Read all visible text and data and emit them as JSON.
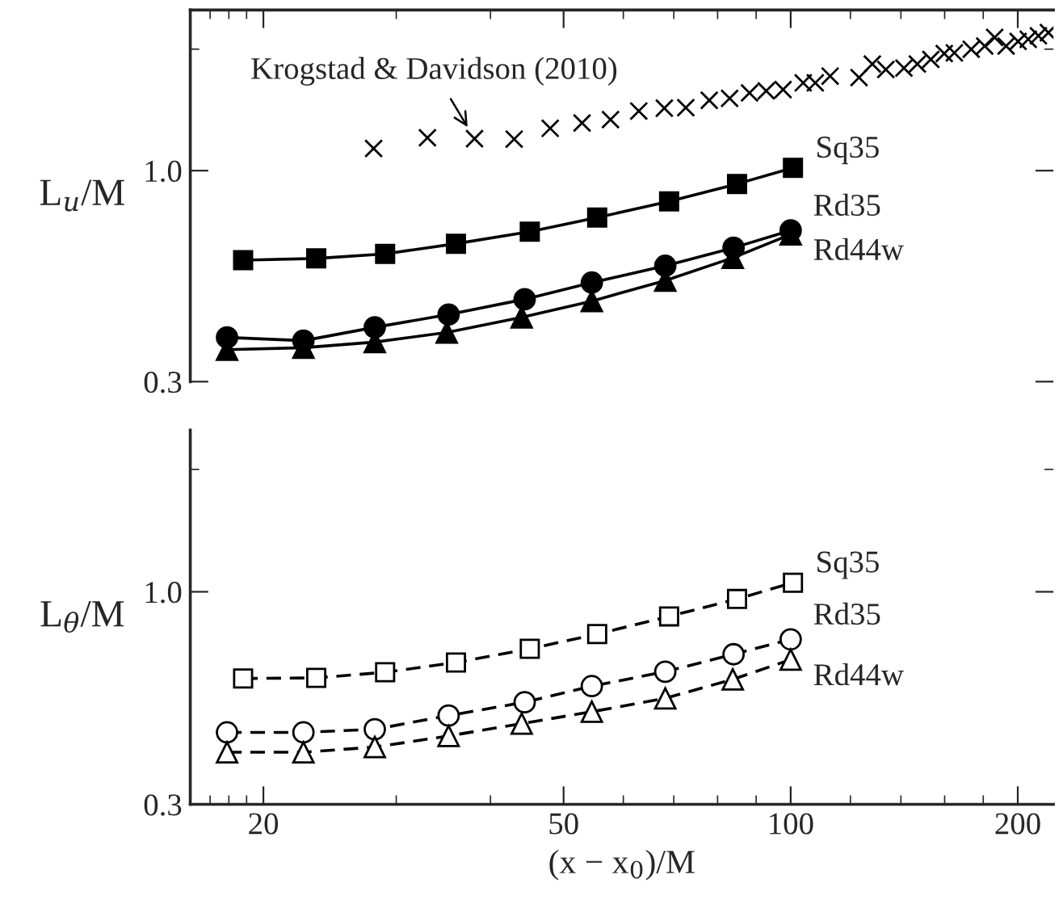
{
  "chart_data": [
    {
      "type": "line",
      "ylabel": "L$_{u}$/M",
      "log": "xy",
      "grid": false,
      "legend": false,
      "tick_labels": "y",
      "xlim": [
        16,
        223
      ],
      "ylim": [
        0.3,
        2.5
      ],
      "xticks": [
        20,
        50,
        100,
        200,
        {
          "value": 17,
          "label": null
        },
        {
          "value": 18,
          "label": null
        },
        {
          "value": 19,
          "label": null
        },
        {
          "value": 30,
          "label": null
        },
        {
          "value": 40,
          "label": null
        },
        {
          "value": 60,
          "label": null
        },
        {
          "value": 70,
          "label": null
        },
        {
          "value": 80,
          "label": null
        },
        {
          "value": 90,
          "label": null
        },
        {
          "value": 120,
          "label": null
        },
        {
          "value": 140,
          "label": null
        },
        {
          "value": 160,
          "label": null
        },
        {
          "value": 180,
          "label": null
        }
      ],
      "yticks": [
        {
          "value": 0.3,
          "label": "0.3"
        },
        {
          "value": 1.0,
          "label": "1.0"
        },
        {
          "value": 2.0,
          "label": null
        }
      ],
      "annotations": [
        {
          "text": "Krogstad & Davidson (2010)",
          "x": 38.1,
          "y": 1.2
        }
      ],
      "series": [
        {
          "name": "Sq35",
          "color": "#000000",
          "marker": "square",
          "line_style": "solid",
          "x": [
            18.8,
            23.5,
            29.0,
            36.0,
            45.1,
            55.4,
            69.0,
            84.9,
            100.7
          ],
          "values": [
            0.6,
            0.606,
            0.622,
            0.659,
            0.706,
            0.765,
            0.839,
            0.927,
            1.016
          ]
        },
        {
          "name": "Rd35",
          "color": "#000000",
          "marker": "circle",
          "line_style": "solid",
          "x": [
            17.9,
            22.6,
            28.1,
            35.2,
            44.4,
            54.5,
            68.2,
            84.0,
            100.0
          ],
          "values": [
            0.386,
            0.379,
            0.409,
            0.44,
            0.48,
            0.528,
            0.581,
            0.644,
            0.711
          ]
        },
        {
          "name": "Rd44w",
          "color": "#000000",
          "marker": "triangle",
          "line_style": "solid",
          "x": [
            17.9,
            22.6,
            28.1,
            35.0,
            44.0,
            54.5,
            68.2,
            83.8,
            100.0
          ],
          "values": [
            0.36,
            0.364,
            0.376,
            0.397,
            0.433,
            0.475,
            0.534,
            0.608,
            0.695
          ]
        },
        {
          "type": "scatter",
          "color": "#000000",
          "marker": "cross",
          "x": [
            28.0,
            33.0,
            38.1,
            43.0,
            48.0,
            52.9,
            57.7,
            62.9,
            68.0,
            72.6,
            78.0,
            83.0,
            88.2,
            92.8,
            97.7,
            103.9,
            107.8,
            112.8,
            123.2,
            128.3,
            133.7,
            141.3,
            147.2,
            153.4,
            159.8,
            164.8,
            173.5,
            180.8,
            186.4,
            193.0,
            200.2,
            206.5,
            213.0,
            219.6
          ],
          "values": [
            1.135,
            1.206,
            1.2,
            1.197,
            1.273,
            1.312,
            1.338,
            1.405,
            1.428,
            1.432,
            1.494,
            1.51,
            1.558,
            1.576,
            1.588,
            1.65,
            1.65,
            1.715,
            1.701,
            1.837,
            1.781,
            1.795,
            1.837,
            1.887,
            1.951,
            1.958,
            1.998,
            2.036,
            2.138,
            2.036,
            2.09,
            2.116,
            2.158,
            2.198
          ]
        }
      ]
    },
    {
      "type": "line",
      "ylabel": "L$_{θ}$/M",
      "xlabel": "(x − x$_{0}$)/M",
      "log": "xy",
      "grid": false,
      "legend": false,
      "xlim": [
        16,
        223
      ],
      "ylim": [
        0.3,
        2.5
      ],
      "xticks": [
        20,
        50,
        100,
        200,
        {
          "value": 17,
          "label": null
        },
        {
          "value": 18,
          "label": null
        },
        {
          "value": 19,
          "label": null
        },
        {
          "value": 30,
          "label": null
        },
        {
          "value": 40,
          "label": null
        },
        {
          "value": 60,
          "label": null
        },
        {
          "value": 70,
          "label": null
        },
        {
          "value": 80,
          "label": null
        },
        {
          "value": 90,
          "label": null
        },
        {
          "value": 120,
          "label": null
        },
        {
          "value": 140,
          "label": null
        },
        {
          "value": 160,
          "label": null
        },
        {
          "value": 180,
          "label": null
        }
      ],
      "yticks": [
        {
          "value": 0.3,
          "label": "0.3"
        },
        {
          "value": 1.0,
          "label": "1.0"
        },
        {
          "value": 2.0,
          "label": null
        }
      ],
      "series": [
        {
          "name": "Sq35",
          "color": "#000000",
          "marker": "square",
          "line_style": "dashed",
          "x": [
            18.8,
            23.5,
            29.0,
            36.0,
            45.1,
            55.4,
            69.0,
            84.9,
            100.7
          ],
          "values": [
            0.612,
            0.614,
            0.634,
            0.67,
            0.724,
            0.787,
            0.87,
            0.96,
            1.053
          ]
        },
        {
          "name": "Rd35",
          "color": "#000000",
          "marker": "circle",
          "line_style": "dashed",
          "x": [
            17.9,
            22.6,
            28.1,
            35.2,
            44.4,
            54.5,
            68.2,
            84.0,
            100.0
          ],
          "values": [
            0.451,
            0.451,
            0.459,
            0.496,
            0.535,
            0.586,
            0.636,
            0.702,
            0.764
          ]
        },
        {
          "name": "Rd44w",
          "color": "#000000",
          "marker": "triangle",
          "line_style": "dashed",
          "x": [
            17.9,
            22.6,
            28.1,
            35.2,
            44.0,
            54.5,
            68.2,
            83.8,
            100.0
          ],
          "values": [
            0.403,
            0.403,
            0.415,
            0.442,
            0.474,
            0.507,
            0.547,
            0.609,
            0.681
          ]
        }
      ]
    }
  ]
}
